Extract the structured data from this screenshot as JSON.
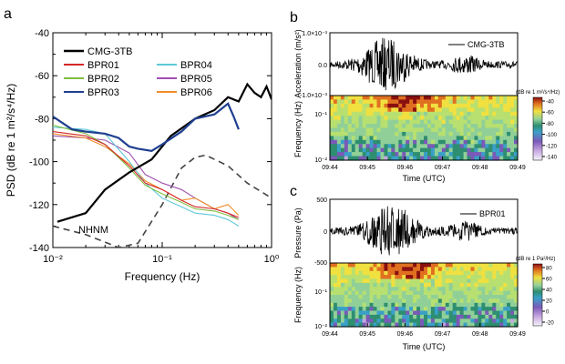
{
  "colors": {
    "CMG-3TB": "#000000",
    "BPR01": "#d62728",
    "BPR02": "#7fbf3f",
    "BPR03": "#1f3f8f",
    "BPR04": "#5fc8d8",
    "BPR05": "#a050b0",
    "BPR06": "#f08c28",
    "NHNM": "#444444"
  },
  "panels": {
    "a": "a",
    "b": "b",
    "c": "c"
  },
  "chart_data": [
    {
      "panel": "a",
      "type": "line",
      "xlabel": "Frequency (Hz)",
      "ylabel": "PSD (dB re 1 m²/s⁴/Hz)",
      "xscale": "log",
      "xlim": [
        0.01,
        1
      ],
      "ylim": [
        -140,
        -40
      ],
      "xticks": [
        "10⁻²",
        "10⁻¹",
        "10⁰"
      ],
      "yticks": [
        -140,
        -120,
        -100,
        -80,
        -60,
        -40
      ],
      "legend_title": "CMG-3TB",
      "legend_placement": "top-left",
      "annotation": "NHNM",
      "series": [
        {
          "name": "CMG-3TB",
          "style": "solid-thick",
          "x": [
            0.011,
            0.02,
            0.03,
            0.05,
            0.08,
            0.12,
            0.2,
            0.3,
            0.4,
            0.5,
            0.6,
            0.7,
            0.8,
            0.9,
            1.0
          ],
          "y": [
            -128,
            -124,
            -113,
            -105,
            -99,
            -88,
            -80,
            -76,
            -70,
            -72,
            -64,
            -68,
            -70,
            -65,
            -71
          ]
        },
        {
          "name": "BPR01",
          "x": [
            0.01,
            0.02,
            0.03,
            0.05,
            0.07,
            0.1,
            0.15,
            0.2,
            0.3,
            0.4,
            0.5
          ],
          "y": [
            -86,
            -88,
            -92,
            -102,
            -110,
            -113,
            -118,
            -121,
            -122,
            -124,
            -126
          ]
        },
        {
          "name": "BPR02",
          "x": [
            0.01,
            0.02,
            0.03,
            0.05,
            0.07,
            0.1,
            0.15,
            0.2,
            0.3,
            0.4,
            0.5
          ],
          "y": [
            -83,
            -87,
            -92,
            -103,
            -111,
            -115,
            -119,
            -122,
            -123,
            -125,
            -127
          ]
        },
        {
          "name": "BPR03",
          "style": "solid-thick",
          "x": [
            0.01,
            0.015,
            0.02,
            0.03,
            0.04,
            0.05,
            0.06,
            0.08,
            0.1,
            0.15,
            0.2,
            0.3,
            0.4,
            0.45,
            0.5
          ],
          "y": [
            -79,
            -85,
            -86,
            -87,
            -89,
            -93,
            -94,
            -95,
            -92,
            -86,
            -80,
            -78,
            -73,
            -79,
            -85
          ]
        },
        {
          "name": "BPR04",
          "x": [
            0.01,
            0.02,
            0.03,
            0.05,
            0.07,
            0.1,
            0.15,
            0.2,
            0.3,
            0.4,
            0.5
          ],
          "y": [
            -84,
            -85,
            -87,
            -100,
            -110,
            -117,
            -121,
            -124,
            -125,
            -127,
            -130
          ]
        },
        {
          "name": "BPR05",
          "x": [
            0.01,
            0.02,
            0.03,
            0.05,
            0.07,
            0.1,
            0.15,
            0.2,
            0.3,
            0.4,
            0.5
          ],
          "y": [
            -88,
            -89,
            -90,
            -96,
            -106,
            -110,
            -113,
            -117,
            -122,
            -124,
            -127
          ]
        },
        {
          "name": "BPR06",
          "x": [
            0.01,
            0.02,
            0.03,
            0.05,
            0.07,
            0.1,
            0.15,
            0.2,
            0.3,
            0.4,
            0.5
          ],
          "y": [
            -87,
            -89,
            -93,
            -101,
            -109,
            -113,
            -118,
            -117,
            -122,
            -120,
            -125
          ]
        },
        {
          "name": "NHNM",
          "style": "dashed",
          "x": [
            0.01,
            0.02,
            0.04,
            0.06,
            0.1,
            0.15,
            0.2,
            0.25,
            0.4,
            0.6,
            1.0
          ],
          "y": [
            -130,
            -134,
            -140,
            -138,
            -120,
            -103,
            -98,
            -97,
            -102,
            -110,
            -117
          ]
        }
      ]
    },
    {
      "panel": "b",
      "type": "line",
      "title": "",
      "legend": "CMG-3TB",
      "xlabel": "Time (UTC)",
      "ylabel": "Acceleration (m/s²)",
      "xticks": [
        "09:44",
        "09:45",
        "09:46",
        "09:47",
        "09:48",
        "09:49"
      ],
      "yticks": [
        "1.0×10⁻³",
        "0.0",
        "-1.0×10⁻³"
      ],
      "ylim": [
        -0.001,
        0.001
      ],
      "spectrogram": {
        "type": "heatmap",
        "ylabel": "Frequency (Hz)",
        "yscale": "log",
        "yticks": [
          "10⁻¹",
          "10⁻²"
        ],
        "colorbar_label": "(dB re 1 m²/s⁴/Hz)",
        "colorbar_ticks": [
          -40,
          -60,
          -80,
          -100,
          -120,
          -140
        ],
        "range": [
          -140,
          -40
        ]
      }
    },
    {
      "panel": "c",
      "type": "line",
      "legend": "BPR01",
      "xlabel": "Time (UTC)",
      "ylabel": "Pressure (Pa)",
      "xticks": [
        "09:44",
        "09:45",
        "09:46",
        "09:47",
        "09:48",
        "09:49"
      ],
      "yticks": [
        500,
        0,
        -500
      ],
      "ylim": [
        -500,
        500
      ],
      "spectrogram": {
        "type": "heatmap",
        "ylabel": "Frequency (Hz)",
        "yscale": "log",
        "yticks": [
          "10⁻¹",
          "10⁻²"
        ],
        "colorbar_label": "(dB re 1 Pa²/Hz)",
        "colorbar_ticks": [
          80,
          60,
          40,
          20,
          0,
          -20
        ],
        "range": [
          -20,
          80
        ]
      }
    }
  ]
}
